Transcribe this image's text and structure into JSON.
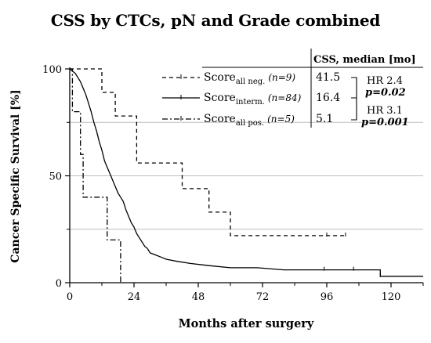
{
  "chart_data": {
    "type": "line",
    "subtype": "kaplan-meier",
    "title": "CSS by CTCs, pN and Grade combined",
    "xlabel": "Months after surgery",
    "ylabel": "Cancer Specific Survival  [%]",
    "xlim": [
      0,
      132
    ],
    "ylim": [
      0,
      100
    ],
    "xticks": [
      0,
      24,
      48,
      72,
      96,
      120
    ],
    "yticks": [
      0,
      50,
      100
    ],
    "grid": "horizontal dashed at 25, 50, 75",
    "legend_header": "CSS, median [mo]",
    "series": [
      {
        "name_base": "Score",
        "name_sub": "all neg.",
        "n_label": "(n=9)",
        "median": "41.5",
        "style": "dashed",
        "x": [
          0,
          12,
          12,
          17,
          17,
          25,
          25,
          42,
          42,
          52,
          52,
          60,
          60,
          103
        ],
        "y": [
          100,
          100,
          89,
          89,
          78,
          78,
          56,
          56,
          44,
          44,
          33,
          33,
          22,
          22
        ],
        "censor_x": [
          96,
          103
        ]
      },
      {
        "name_base": "Score",
        "name_sub": "interm.",
        "n_label": "(n=84)",
        "median": "16.4",
        "style": "solid",
        "x": [
          0,
          1,
          2,
          3,
          4,
          5,
          6,
          7,
          8,
          9,
          10,
          11,
          12,
          13,
          14,
          15,
          16,
          17,
          18,
          19,
          20,
          21,
          22,
          23,
          24,
          25,
          26,
          27,
          28,
          29,
          30,
          32,
          34,
          36,
          40,
          45,
          52,
          60,
          70,
          80,
          90,
          100,
          110,
          116,
          116,
          132
        ],
        "y": [
          100,
          99,
          98,
          96,
          94,
          91,
          88,
          84,
          80,
          75,
          71,
          66,
          62,
          57,
          54,
          51,
          48,
          45,
          42,
          40,
          38,
          34,
          31,
          28,
          26,
          23,
          21,
          19,
          17,
          16,
          14,
          13,
          12,
          11,
          10,
          9,
          8,
          7,
          7,
          6,
          6,
          6,
          6,
          6,
          3,
          3
        ],
        "censor_x": [
          95,
          106,
          116
        ]
      },
      {
        "name_base": "Score",
        "name_sub": "all pos.",
        "n_label": "(n=5)",
        "median": "5.1",
        "style": "dash-dot",
        "x": [
          0,
          1,
          1,
          4,
          4,
          5,
          5,
          14,
          14,
          19,
          19
        ],
        "y": [
          100,
          100,
          80,
          80,
          60,
          60,
          40,
          40,
          20,
          20,
          0
        ],
        "censor_x": []
      }
    ],
    "annotations": [
      {
        "label": "HR 2.4",
        "p_label": "p=0.02"
      },
      {
        "label": "HR 3.1",
        "p_label": "p=0.001"
      }
    ]
  }
}
